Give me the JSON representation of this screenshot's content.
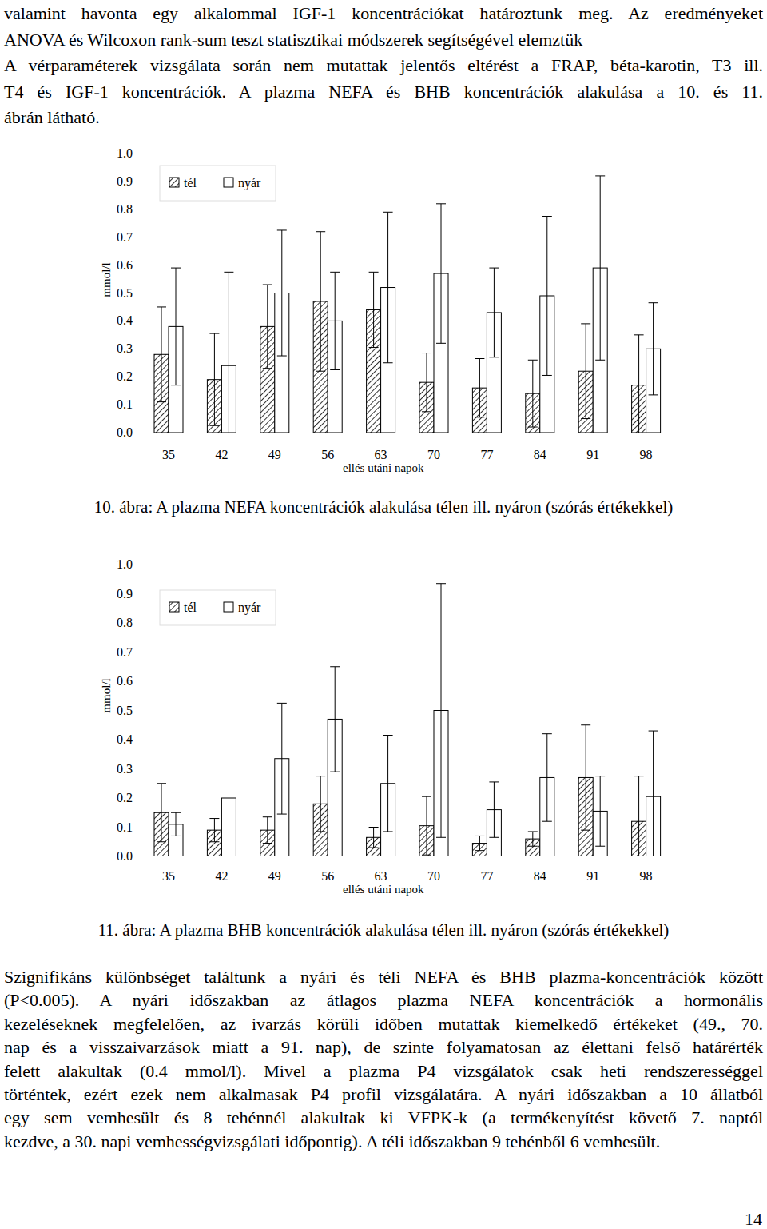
{
  "text_top": [
    [
      "valamint havonta egy alkalommal IGF-1 koncentrációkat határoztunk meg. Az eredményeket",
      "ANOVA és Wilcoxon rank-sum teszt statisztikai módszerek segítségével elemztük"
    ],
    [
      "A vérparaméterek vizsgálata során nem mutattak jelentős eltérést a FRAP, béta-karotin, T3 ill.",
      "T4 és IGF-1 koncentrációk. A plazma NEFA és BHB koncentrációk alakulása a 10. és 11.",
      "ábrán látható."
    ]
  ],
  "chart_data": [
    {
      "type": "bar",
      "caption": "10. ábra: A plazma NEFA koncentrációk alakulása télen ill. nyáron (szórás értékekkel)",
      "x_label": "ellés utáni napok",
      "y_label": "mmol/l",
      "categories": [
        "35",
        "42",
        "49",
        "56",
        "63",
        "70",
        "77",
        "84",
        "91",
        "98"
      ],
      "series": [
        {
          "name": "tél",
          "color": "#000000",
          "values": [
            0.28,
            0.19,
            0.38,
            0.47,
            0.44,
            0.18,
            0.16,
            0.14,
            0.22,
            0.17
          ],
          "errors": [
            0.17,
            0.165,
            0.15,
            0.25,
            0.135,
            0.105,
            0.105,
            0.12,
            0.17,
            0.18
          ]
        },
        {
          "name": "nyár",
          "color": "#ffffff",
          "values": [
            0.38,
            0.24,
            0.5,
            0.4,
            0.52,
            0.57,
            0.43,
            0.49,
            0.59,
            0.3
          ],
          "errors": [
            0.21,
            0.335,
            0.225,
            0.175,
            0.27,
            0.25,
            0.16,
            0.285,
            0.33,
            0.165
          ]
        }
      ],
      "ylim": [
        0,
        1
      ],
      "yticks": [
        {
          "value": 0,
          "label": "0.0"
        },
        {
          "value": 0.1,
          "label": "0.1"
        },
        {
          "value": 0.2,
          "label": "0.2"
        },
        {
          "value": 0.3,
          "label": "0.3"
        },
        {
          "value": 0.4,
          "label": "0.4"
        },
        {
          "value": 0.5,
          "label": "0.5"
        },
        {
          "value": 0.6,
          "label": "0.6"
        },
        {
          "value": 0.7,
          "label": "0.7"
        },
        {
          "value": 0.8,
          "label": "0.8"
        },
        {
          "value": 0.9,
          "label": "0.9"
        },
        {
          "value": 1,
          "label": "1.0"
        }
      ],
      "grid": false,
      "legend": "top-left"
    },
    {
      "type": "bar",
      "caption": "11. ábra: A plazma BHB koncentrációk alakulása télen ill. nyáron (szórás értékekkel)",
      "x_label": "ellés utáni napok",
      "y_label": "mmol/l",
      "categories": [
        "35",
        "42",
        "49",
        "56",
        "63",
        "70",
        "77",
        "84",
        "91",
        "98"
      ],
      "series": [
        {
          "name": "tél",
          "color": "#000000",
          "values": [
            0.15,
            0.09,
            0.09,
            0.18,
            0.065,
            0.105,
            0.045,
            0.06,
            0.27,
            0.12
          ],
          "errors": [
            0.1,
            0.04,
            0.045,
            0.095,
            0.035,
            0.1,
            0.025,
            0.025,
            0.18,
            0.155
          ]
        },
        {
          "name": "nyár",
          "color": "#ffffff",
          "values": [
            0.11,
            0.2,
            0.335,
            0.47,
            0.25,
            0.5,
            0.16,
            0.27,
            0.155,
            0.205
          ],
          "errors": [
            0.04,
            null,
            0.19,
            0.18,
            0.165,
            0.435,
            0.095,
            0.15,
            0.12,
            0.225
          ]
        }
      ],
      "ylim": [
        0,
        1
      ],
      "yticks": [
        {
          "value": 0,
          "label": "0.0"
        },
        {
          "value": 0.1,
          "label": "0.1"
        },
        {
          "value": 0.2,
          "label": "0.2"
        },
        {
          "value": 0.3,
          "label": "0.3"
        },
        {
          "value": 0.4,
          "label": "0.4"
        },
        {
          "value": 0.5,
          "label": "0.5"
        },
        {
          "value": 0.6,
          "label": "0.6"
        },
        {
          "value": 0.7,
          "label": "0.7"
        },
        {
          "value": 0.8,
          "label": "0.8"
        },
        {
          "value": 0.9,
          "label": "0.9"
        },
        {
          "value": 1,
          "label": "1.0"
        }
      ],
      "grid": false,
      "legend": "top-left"
    }
  ],
  "text_bottom": [
    [
      "Szignifikáns különbséget találtunk a nyári és téli NEFA és BHB plazma-koncentrációk között",
      "(P<0.005). A nyári időszakban az átlagos plazma NEFA koncentrációk a hormonális",
      "kezeléseknek megfelelően, az ivarzás körüli időben mutattak kiemelkedő értékeket (49., 70.",
      "nap és a visszaivarzások miatt a 91. nap), de szinte folyamatosan az élettani felső határérték",
      "felett alakultak (0.4 mmol/l). Mivel a plazma P4 vizsgálatok csak heti rendszerességgel",
      "történtek, ezért ezek nem alkalmasak P4 profil vizsgálatára. A nyári időszakban a 10 állatból",
      "egy sem vemhesült és 8 tehénnél alakultak ki VFPK-k (a termékenyítést követő 7. naptól",
      "kezdve, a 30. napi vemhességvizsgálati időpontig). A téli időszakban 9 tehénből 6 vemhesült."
    ]
  ],
  "page_number": "14"
}
